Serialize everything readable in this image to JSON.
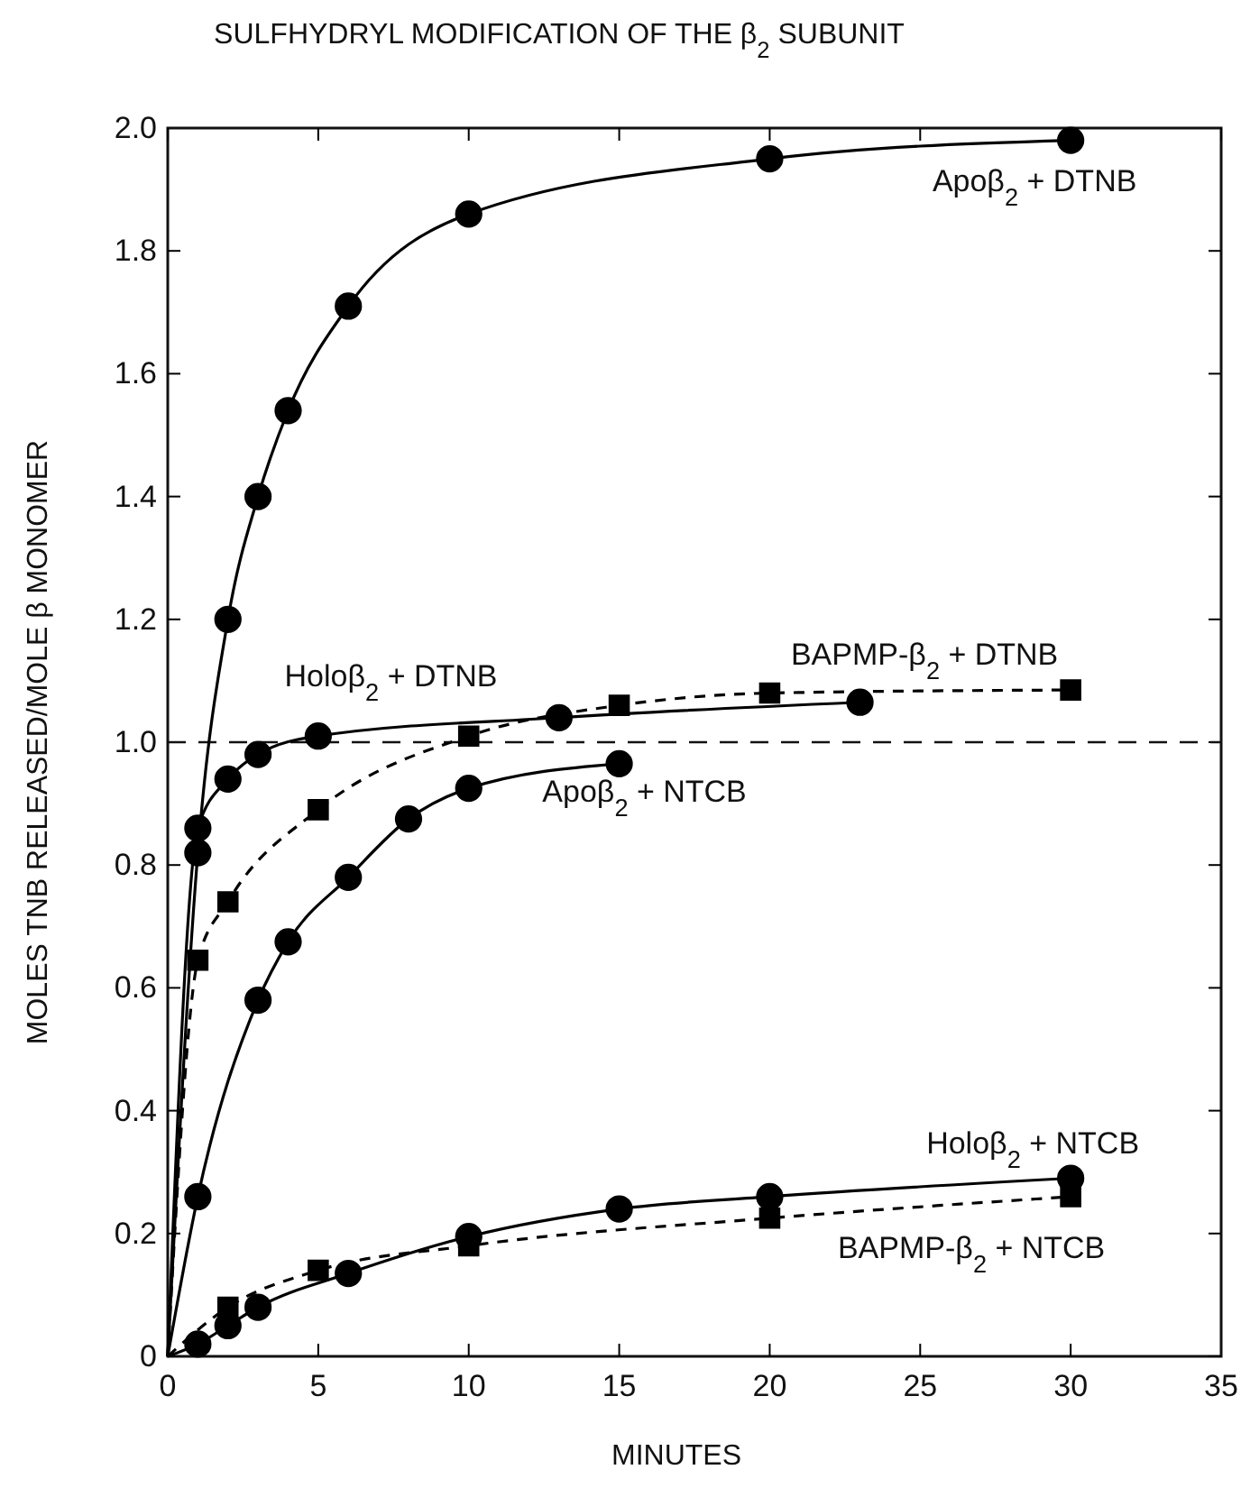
{
  "chart_data": {
    "type": "line",
    "title": "SULFHYDRYL MODIFICATION OF THE β$_{2}$ SUBUNIT",
    "xlabel": "MINUTES",
    "ylabel": "MOLES TNB RELEASED/MOLE β MONOMER",
    "xlim": [
      0,
      35
    ],
    "xticks": [
      0,
      5,
      10,
      15,
      20,
      25,
      30,
      35
    ],
    "ylim": [
      0,
      2
    ],
    "yticks": [
      0,
      0.2,
      0.4,
      0.6,
      0.8,
      {
        "value": 1,
        "label": "1.0"
      },
      1.2,
      1.4,
      1.6,
      1.8,
      {
        "value": 2,
        "label": "2.0"
      }
    ],
    "grid": false,
    "ref_lines": [
      {
        "axis": "y",
        "value": 1,
        "line_style": "dashed"
      }
    ],
    "series": [
      {
        "name": "Apoβ$_{2}$ + DTNB",
        "color": "#000000",
        "marker": "circle",
        "line_style": "solid",
        "x": [
          0,
          1,
          2,
          3,
          4,
          6,
          10,
          20,
          30
        ],
        "values": [
          0,
          0.82,
          1.2,
          1.4,
          1.54,
          1.71,
          1.86,
          1.95,
          1.98
        ]
      },
      {
        "name": "Holoβ$_{2}$ + DTNB",
        "color": "#000000",
        "marker": "circle",
        "line_style": "solid",
        "x": [
          0,
          1,
          2,
          3,
          5,
          13,
          23
        ],
        "values": [
          0,
          0.86,
          0.94,
          0.98,
          1.01,
          1.04,
          1.065
        ]
      },
      {
        "name": "BAPMP-β$_{2}$ + DTNB",
        "color": "#000000",
        "marker": "square",
        "line_style": "dashed",
        "x": [
          0,
          1,
          2,
          5,
          10,
          15,
          20,
          30
        ],
        "values": [
          0,
          0.645,
          0.74,
          0.89,
          1.01,
          1.06,
          1.08,
          1.085
        ]
      },
      {
        "name": "Apoβ$_{2}$ + NTCB",
        "color": "#000000",
        "marker": "circle",
        "line_style": "solid",
        "x": [
          0,
          1,
          3,
          4,
          6,
          8,
          10,
          15
        ],
        "values": [
          0,
          0.26,
          0.58,
          0.675,
          0.78,
          0.875,
          0.925,
          0.965
        ]
      },
      {
        "name": "Holoβ$_{2}$ + NTCB",
        "color": "#000000",
        "marker": "circle",
        "line_style": "solid",
        "x": [
          0,
          1,
          2,
          3,
          6,
          10,
          15,
          20,
          30
        ],
        "values": [
          0,
          0.02,
          0.05,
          0.08,
          0.135,
          0.195,
          0.24,
          0.26,
          0.29
        ]
      },
      {
        "name": "BAPMP-β$_{2}$ + NTCB",
        "color": "#000000",
        "marker": "square",
        "line_style": "dashed",
        "x": [
          0,
          2,
          5,
          10,
          20,
          30
        ],
        "values": [
          0,
          0.08,
          0.14,
          0.18,
          0.225,
          0.26
        ]
      }
    ]
  }
}
